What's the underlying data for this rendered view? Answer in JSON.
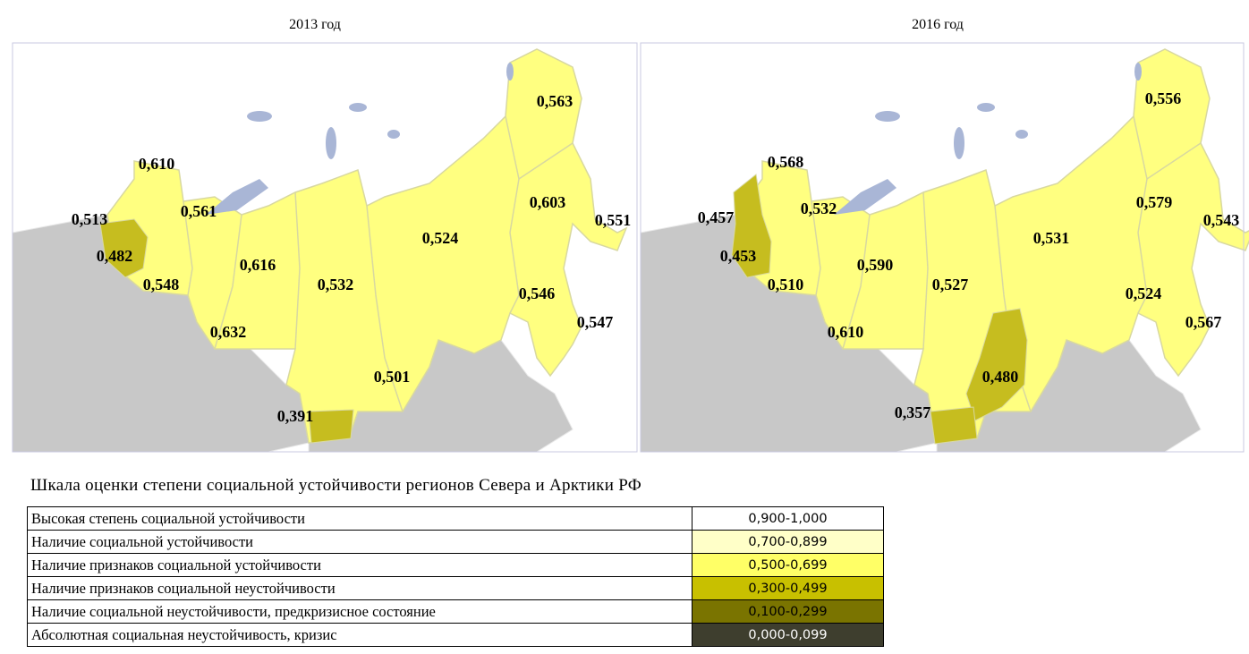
{
  "maps": [
    {
      "title": "2013 год",
      "labels": [
        "0,563",
        "0,610",
        "0,513",
        "0,561",
        "0,603",
        "0,551",
        "0,482",
        "0,524",
        "0,616",
        "0,548",
        "0,532",
        "0,546",
        "0,547",
        "0,632",
        "0,501",
        "0,391"
      ]
    },
    {
      "title": "2016 год",
      "labels": [
        "0,556",
        "0,568",
        "0,457",
        "0,532",
        "0,579",
        "0,543",
        "0,453",
        "0,531",
        "0,590",
        "0,510",
        "0,527",
        "0,524",
        "0,567",
        "0,610",
        "0,480",
        "0,357"
      ]
    }
  ],
  "legend": {
    "title": "Шкала оценки степени социальной устойчивости регионов Севера и Арктики РФ",
    "rows": [
      [
        "Высокая степень социальной устойчивости",
        "0,900-1,000"
      ],
      [
        "Наличие социальной устойчивости",
        "0,700-0,899"
      ],
      [
        "Наличие признаков социальной устойчивости",
        "0,500-0,699"
      ],
      [
        "Наличие признаков социальной неустойчивости",
        "0,300-0,499"
      ],
      [
        "Наличие социальной неустойчивости, предкризисное состояние",
        "0,100-0,299"
      ],
      [
        "Абсолютная социальная неустойчивость, кризис",
        "0,000-0,099"
      ]
    ]
  }
}
